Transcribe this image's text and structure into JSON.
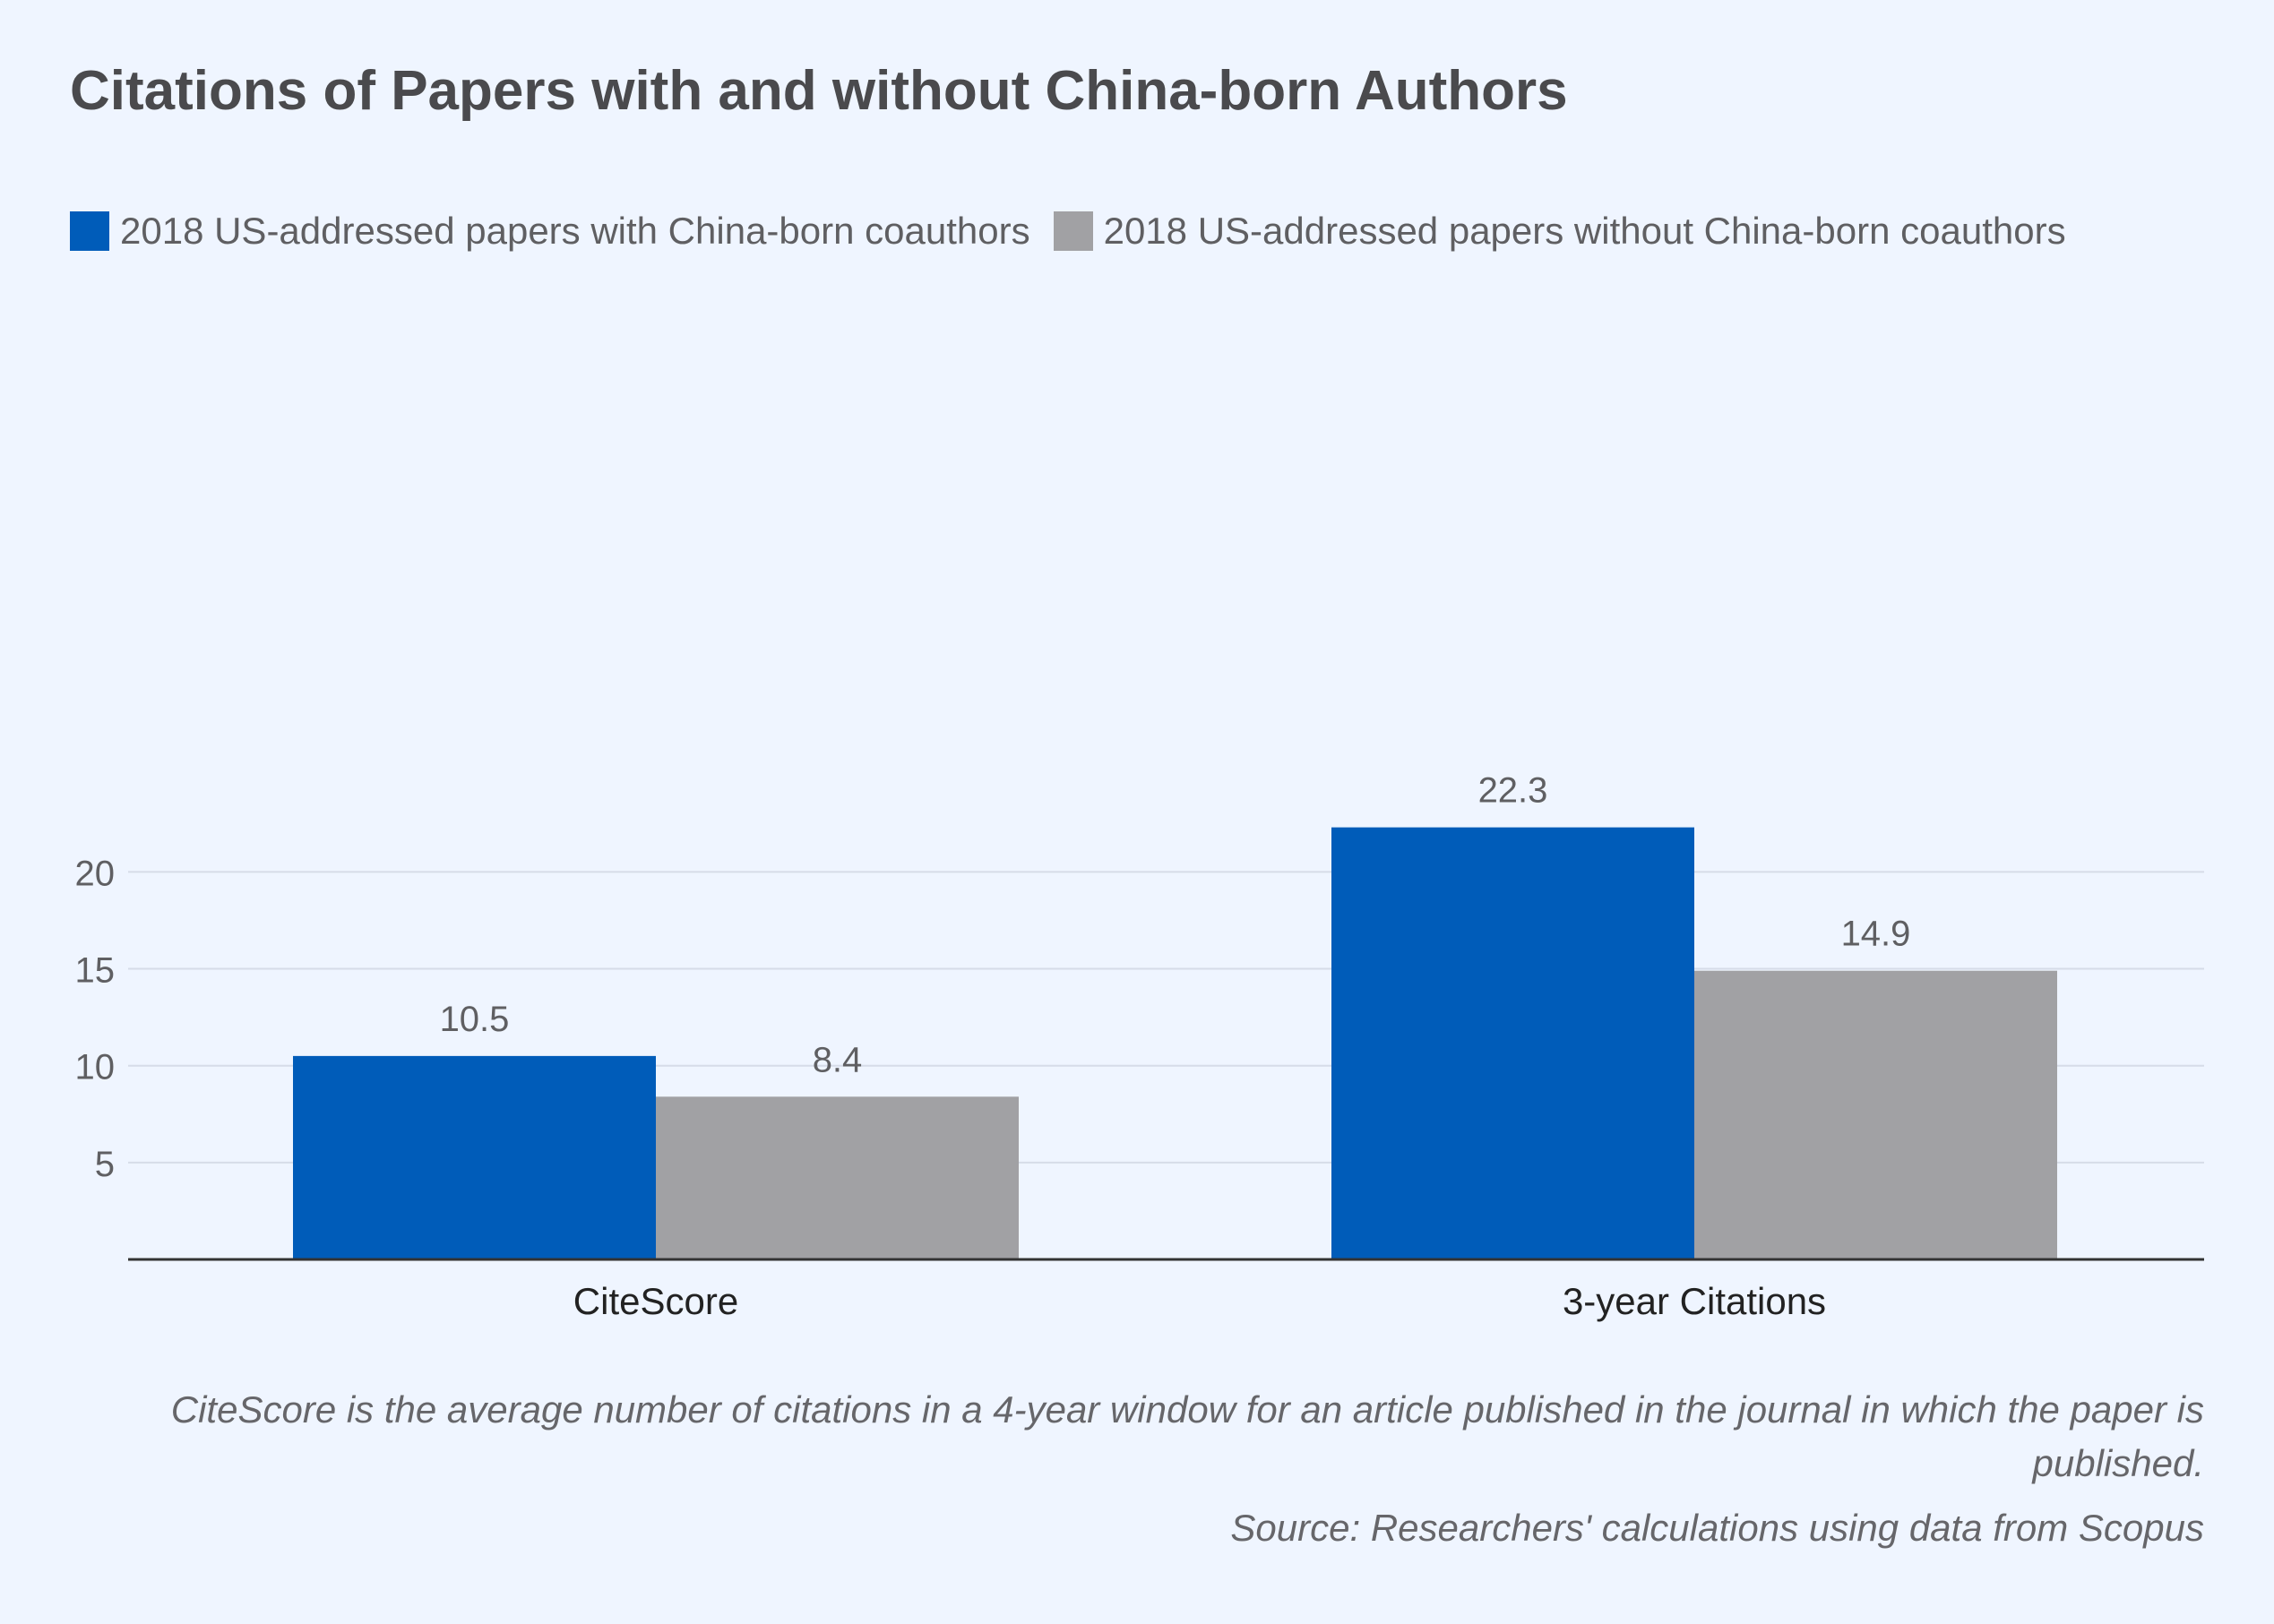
{
  "chart_data": {
    "type": "bar",
    "title": "Citations of Papers with and without China-born Authors",
    "categories": [
      "CiteScore",
      "3-year Citations"
    ],
    "series": [
      {
        "name": "2018 US-addressed papers with China-born coauthors",
        "values": [
          10.5,
          22.3
        ],
        "color": "#005cb9"
      },
      {
        "name": "2018 US-addressed papers without China-born coauthors",
        "values": [
          8.4,
          14.9
        ],
        "color": "#a1a1a4"
      }
    ],
    "value_labels": [
      [
        "10.5",
        "22.3"
      ],
      [
        "8.4",
        "14.9"
      ]
    ],
    "yticks": [
      5,
      10,
      15,
      20
    ],
    "ylim": [
      0,
      25
    ],
    "xlabel": "",
    "ylabel": "",
    "grid": true,
    "legend_position": "top-left"
  },
  "notes": {
    "definition": "CiteScore is the average number of citations in a 4-year window for an article published in the journal in which the paper is published.",
    "source": "Source: Researchers' calculations using data from Scopus"
  },
  "colors": {
    "background": "#eff5ff",
    "gridline": "#d6dce8",
    "axis": "#333333",
    "text": "#5f5f62"
  }
}
